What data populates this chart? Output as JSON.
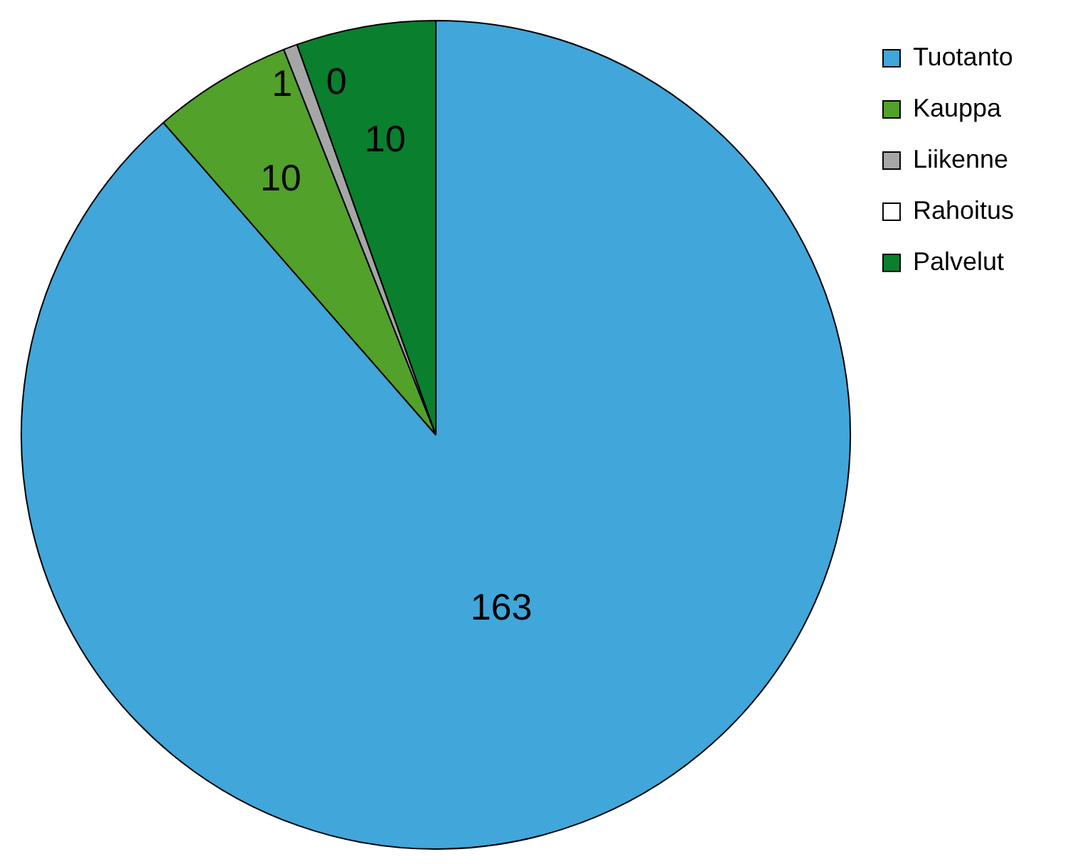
{
  "chart_data": {
    "type": "pie",
    "categories": [
      "Tuotanto",
      "Kauppa",
      "Liikenne",
      "Rahoitus",
      "Palvelut"
    ],
    "values": [
      163,
      10,
      1,
      0,
      10
    ],
    "colors": [
      "#41a6d9",
      "#52a12a",
      "#a6a6a6",
      "#ffffff",
      "#0a7f2e"
    ],
    "value_labels": [
      "163",
      "10",
      "1",
      "0",
      "10"
    ],
    "legend": "top right"
  }
}
